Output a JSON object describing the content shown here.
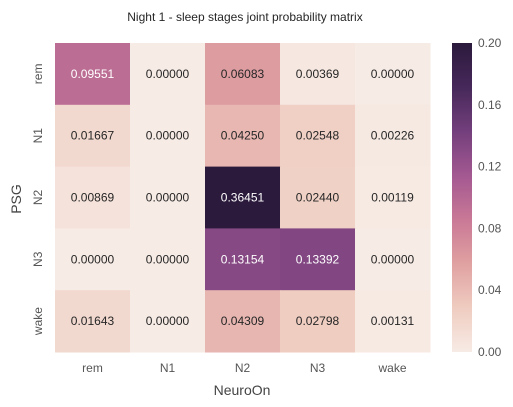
{
  "chart_data": {
    "type": "heatmap",
    "title": "Night 1 - sleep stages joint probability matrix",
    "xlabel": "NeuroOn",
    "ylabel": "PSG",
    "x_categories": [
      "rem",
      "N1",
      "N2",
      "N3",
      "wake"
    ],
    "y_categories": [
      "rem",
      "N1",
      "N2",
      "N3",
      "wake"
    ],
    "values": [
      [
        0.09551,
        0.0,
        0.06083,
        0.00369,
        0.0
      ],
      [
        0.01667,
        0.0,
        0.0425,
        0.02548,
        0.00226
      ],
      [
        0.00869,
        0.0,
        0.36451,
        0.0244,
        0.00119
      ],
      [
        0.0,
        0.0,
        0.13154,
        0.13392,
        0.0
      ],
      [
        0.01643,
        0.0,
        0.04309,
        0.02798,
        0.00131
      ]
    ],
    "cell_labels": [
      [
        "0.09551",
        "0.00000",
        "0.06083",
        "0.00369",
        "0.00000"
      ],
      [
        "0.01667",
        "0.00000",
        "0.04250",
        "0.02548",
        "0.00226"
      ],
      [
        "0.00869",
        "0.00000",
        "0.36451",
        "0.02440",
        "0.00119"
      ],
      [
        "0.00000",
        "0.00000",
        "0.13154",
        "0.13392",
        "0.00000"
      ],
      [
        "0.01643",
        "0.00000",
        "0.04309",
        "0.02798",
        "0.00131"
      ]
    ],
    "colorbar": {
      "range": [
        0.0,
        0.2
      ],
      "ticks": [
        0.0,
        0.04,
        0.08,
        0.12,
        0.16,
        0.2
      ],
      "tick_labels": [
        "0.00",
        "0.04",
        "0.08",
        "0.12",
        "0.16",
        "0.20"
      ]
    },
    "colormap": {
      "stops": [
        "#f7ebe5",
        "#efccc0",
        "#e0a1a1",
        "#c97896",
        "#a35891",
        "#733f7c",
        "#46285a",
        "#2b1a3c"
      ]
    },
    "grid": false,
    "colorbar_position": "right"
  }
}
